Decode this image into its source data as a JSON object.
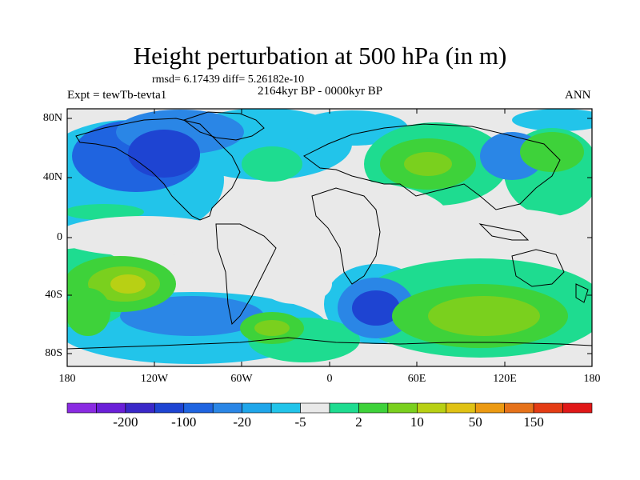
{
  "title": "Height perturbation at 500 hPa (in m)",
  "stats": "rmsd= 6.17439 diff= 5.26182e-10",
  "experiment": "Expt = tewTb-tevta1",
  "period": "2164kyr BP - 0000kyr BP",
  "season": "ANN",
  "lat_labels": [
    "80N",
    "40N",
    "0",
    "40S",
    "80S"
  ],
  "lon_labels": [
    "180",
    "120W",
    "60W",
    "0",
    "60E",
    "120E",
    "180"
  ],
  "colorbar": {
    "colors": [
      "#8a2be2",
      "#6a1fd8",
      "#3a28c8",
      "#1e44d2",
      "#1f64e0",
      "#2a86e6",
      "#1fa6ea",
      "#22c4ea",
      "#e9e9e9",
      "#1edc90",
      "#3ed23a",
      "#7ad01e",
      "#b8d014",
      "#e0c214",
      "#ec9a12",
      "#e6721a",
      "#e43c14",
      "#e01818"
    ],
    "labels": [
      "-200",
      "-100",
      "-20",
      "-5",
      "2",
      "10",
      "50",
      "150"
    ]
  }
}
